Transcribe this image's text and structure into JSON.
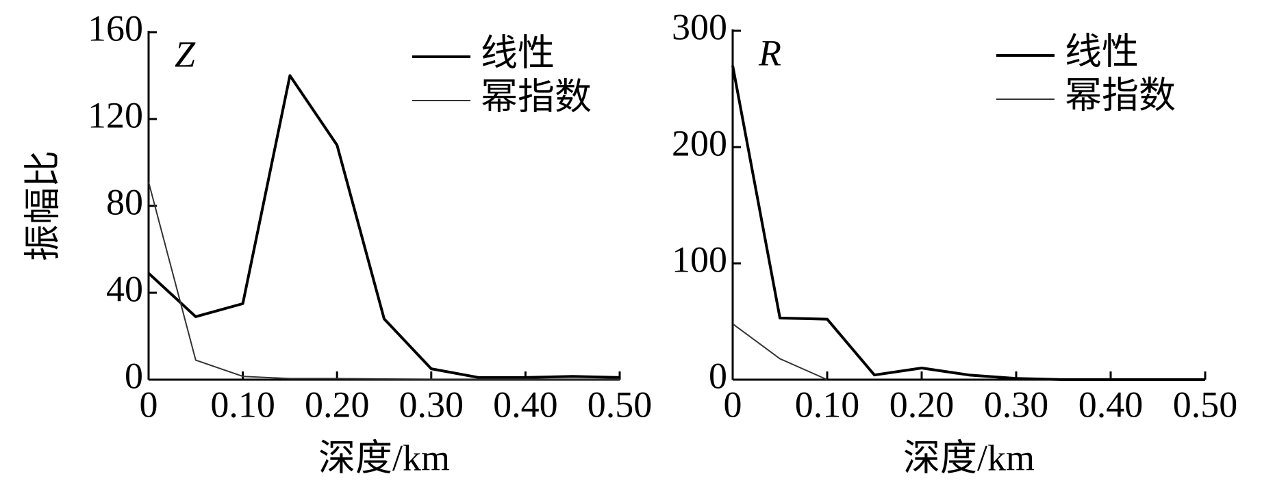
{
  "chart_data": [
    {
      "type": "line",
      "annotation": "Z",
      "x_label": "深度/km",
      "y_label": "振幅比",
      "x": [
        0,
        0.05,
        0.1,
        0.15,
        0.2,
        0.25,
        0.3,
        0.35,
        0.4,
        0.45,
        0.5
      ],
      "xlim": [
        0,
        0.5
      ],
      "ylim": [
        0,
        160
      ],
      "xticks": [
        0,
        {
          "value": 0.1,
          "label": "0.10"
        },
        {
          "value": 0.2,
          "label": "0.20"
        },
        {
          "value": 0.3,
          "label": "0.30"
        },
        {
          "value": 0.4,
          "label": "0.40"
        },
        {
          "value": 0.5,
          "label": "0.50"
        }
      ],
      "yticks": [
        0,
        40,
        80,
        120,
        160
      ],
      "series": [
        {
          "name": "线性",
          "color": "#000000",
          "values": [
            49,
            29,
            35,
            140,
            108,
            28,
            5,
            1,
            1,
            1.5,
            1
          ]
        },
        {
          "name": "幂指数",
          "color": "#333333",
          "values": [
            91,
            9,
            1.5,
            0.5,
            0.5,
            0.3,
            0.2,
            0.2,
            0.2,
            0.2,
            0.2
          ]
        }
      ]
    },
    {
      "type": "line",
      "annotation": "R",
      "x_label": "深度/km",
      "x": [
        0,
        0.05,
        0.1,
        0.15,
        0.2,
        0.25,
        0.3,
        0.35,
        0.4,
        0.45,
        0.5
      ],
      "xlim": [
        0,
        0.5
      ],
      "ylim": [
        0,
        300
      ],
      "xticks": [
        0,
        {
          "value": 0.1,
          "label": "0.10"
        },
        {
          "value": 0.2,
          "label": "0.20"
        },
        {
          "value": 0.3,
          "label": "0.30"
        },
        {
          "value": 0.4,
          "label": "0.40"
        },
        {
          "value": 0.5,
          "label": "0.50"
        }
      ],
      "yticks": [
        0,
        100,
        200,
        300
      ],
      "series": [
        {
          "name": "线性",
          "color": "#000000",
          "values": [
            270,
            53,
            52,
            4,
            10,
            4,
            1,
            0,
            0,
            0,
            0
          ]
        },
        {
          "name": "幂指数",
          "color": "#333333",
          "values": [
            48,
            18,
            0,
            null,
            null,
            null,
            null,
            null,
            null,
            null,
            null
          ]
        }
      ]
    }
  ]
}
